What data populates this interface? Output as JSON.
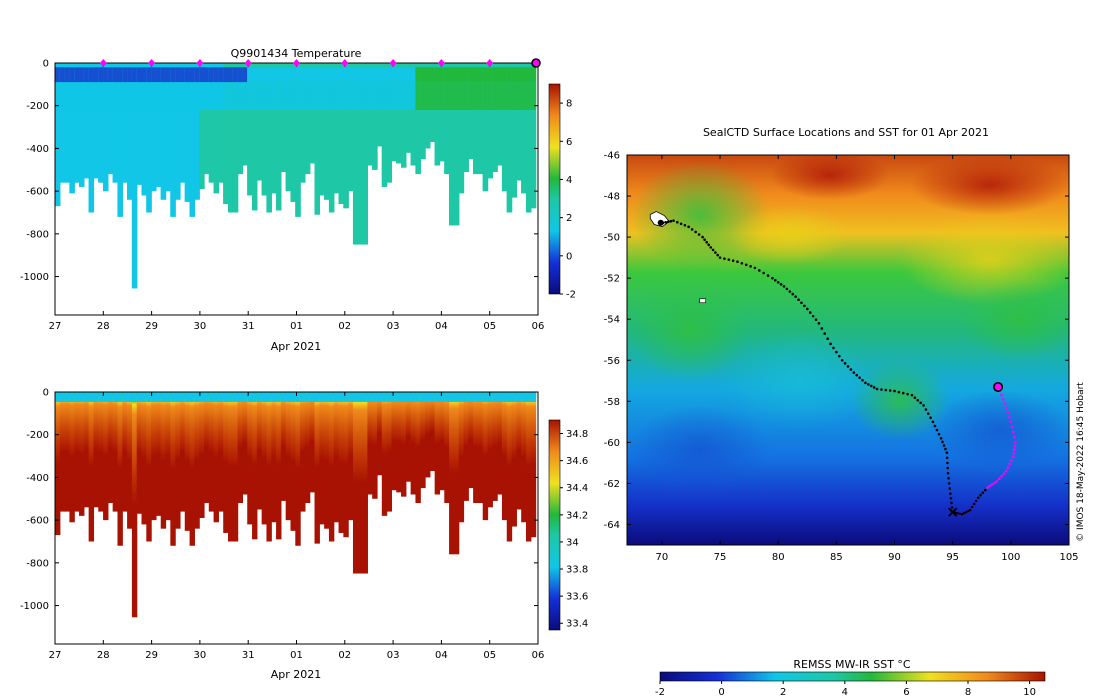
{
  "colors": {
    "deep_blue": "#0b0b7a",
    "light_blue": "#11c6e6",
    "teal": "#1ec7a6",
    "green": "#22b83c",
    "yellow": "#f0e020",
    "orange": "#f08a1c",
    "dark_red": "#a81202",
    "track": "#000000",
    "track_recent": "#ff00ff",
    "marker": "#ff00ff"
  },
  "chart_data": [
    {
      "id": "temperature",
      "type": "heatmap",
      "title": "Q9901434  Temperature",
      "xlabel": "Apr 2021",
      "x_tick_labels": [
        "27",
        "28",
        "29",
        "30",
        "31",
        "01",
        "02",
        "03",
        "04",
        "05",
        "06"
      ],
      "y_ticks": [
        0,
        -200,
        -400,
        -600,
        -800,
        -1000
      ],
      "ylim": [
        -1180,
        0
      ],
      "profile_start_day": 0,
      "profile_end_day": 9.95,
      "profile_count": 100,
      "day_markers": [
        1,
        2,
        3,
        4,
        5,
        6,
        7,
        8,
        9
      ],
      "current_marker_day": 10,
      "profile_depths": [
        670,
        560,
        560,
        610,
        560,
        580,
        540,
        700,
        540,
        560,
        600,
        520,
        560,
        720,
        560,
        640,
        1055,
        570,
        620,
        700,
        600,
        580,
        640,
        600,
        720,
        640,
        560,
        650,
        720,
        640,
        590,
        520,
        560,
        610,
        560,
        660,
        700,
        700,
        520,
        480,
        620,
        690,
        550,
        620,
        700,
        610,
        690,
        510,
        600,
        650,
        720,
        560,
        520,
        470,
        710,
        620,
        640,
        700,
        610,
        660,
        680,
        600,
        850,
        850,
        850,
        480,
        500,
        390,
        580,
        560,
        460,
        470,
        490,
        420,
        480,
        520,
        450,
        400,
        370,
        480,
        460,
        520,
        760,
        760,
        610,
        510,
        450,
        520,
        520,
        600,
        540,
        510,
        480,
        600,
        700,
        630,
        550,
        610,
        700,
        680
      ],
      "cbar_ticks": [
        -2,
        0,
        2,
        4,
        6,
        8
      ],
      "cbar_range": [
        -2,
        9
      ]
    },
    {
      "id": "salinity",
      "type": "heatmap",
      "title": "",
      "xlabel": "Apr 2021",
      "x_tick_labels": [
        "27",
        "28",
        "29",
        "30",
        "31",
        "01",
        "02",
        "03",
        "04",
        "05",
        "06"
      ],
      "y_ticks": [
        0,
        -200,
        -400,
        -600,
        -800,
        -1000
      ],
      "ylim": [
        -1180,
        0
      ],
      "cbar_ticks": [
        33.4,
        33.6,
        33.8,
        34,
        34.2,
        34.4,
        34.6,
        34.8
      ],
      "cbar_tick_labels": [
        "33.4",
        "33.6",
        "33.8",
        "34",
        "34.2",
        "34.4",
        "34.6",
        "34.8"
      ],
      "cbar_range": [
        33.35,
        34.9
      ]
    },
    {
      "id": "map",
      "type": "scatter",
      "title": "SealCTD Surface Locations and SST for 01 Apr 2021",
      "xlim": [
        67,
        105
      ],
      "ylim": [
        -65,
        -46
      ],
      "x_ticks": [
        70,
        75,
        80,
        85,
        90,
        95,
        100,
        105
      ],
      "y_ticks": [
        -46,
        -48,
        -50,
        -52,
        -54,
        -56,
        -58,
        -60,
        -62,
        -64
      ],
      "track_lon": [
        70.1,
        71.0,
        72.3,
        73.5,
        74.2,
        75.0,
        76.5,
        78.0,
        79.5,
        80.5,
        81.5,
        82.5,
        83.5,
        84.5,
        85.5,
        86.5,
        87.5,
        88.5,
        90.0,
        91.5,
        92.5,
        93.3,
        94.0,
        94.5,
        94.6,
        94.8,
        95.0
      ],
      "track_lat": [
        -49.3,
        -49.2,
        -49.5,
        -50.0,
        -50.5,
        -51.0,
        -51.2,
        -51.5,
        -52.0,
        -52.4,
        -52.9,
        -53.5,
        -54.2,
        -55.2,
        -56.0,
        -56.6,
        -57.1,
        -57.4,
        -57.5,
        -57.7,
        -58.2,
        -59.0,
        -59.8,
        -60.5,
        -61.5,
        -62.5,
        -63.4
      ],
      "recent_lon": [
        95.0,
        95.8,
        96.5,
        97.2,
        98.0,
        98.8,
        99.6,
        100.2,
        100.4,
        100.0,
        99.5,
        98.9
      ],
      "recent_lat": [
        -63.4,
        -63.5,
        -63.3,
        -62.7,
        -62.2,
        -61.9,
        -61.4,
        -60.7,
        -60.0,
        -59.0,
        -58.1,
        -57.3
      ],
      "deploy_lon": 69.9,
      "deploy_lat": -49.3,
      "last_position_lon": 98.9,
      "last_position_lat": -57.3,
      "start_marker_lon": 95.0,
      "start_marker_lat": -63.4,
      "island_lon": 73.5,
      "island_lat": -53.1,
      "colorbar_title": "REMSS MW-IR SST °C",
      "cbar_ticks": [
        -2,
        0,
        2,
        4,
        6,
        8,
        10
      ],
      "cbar_range": [
        -2,
        10.5
      ]
    }
  ],
  "credit": "©  IMOS 18-May-2022 16:45 Hobart"
}
